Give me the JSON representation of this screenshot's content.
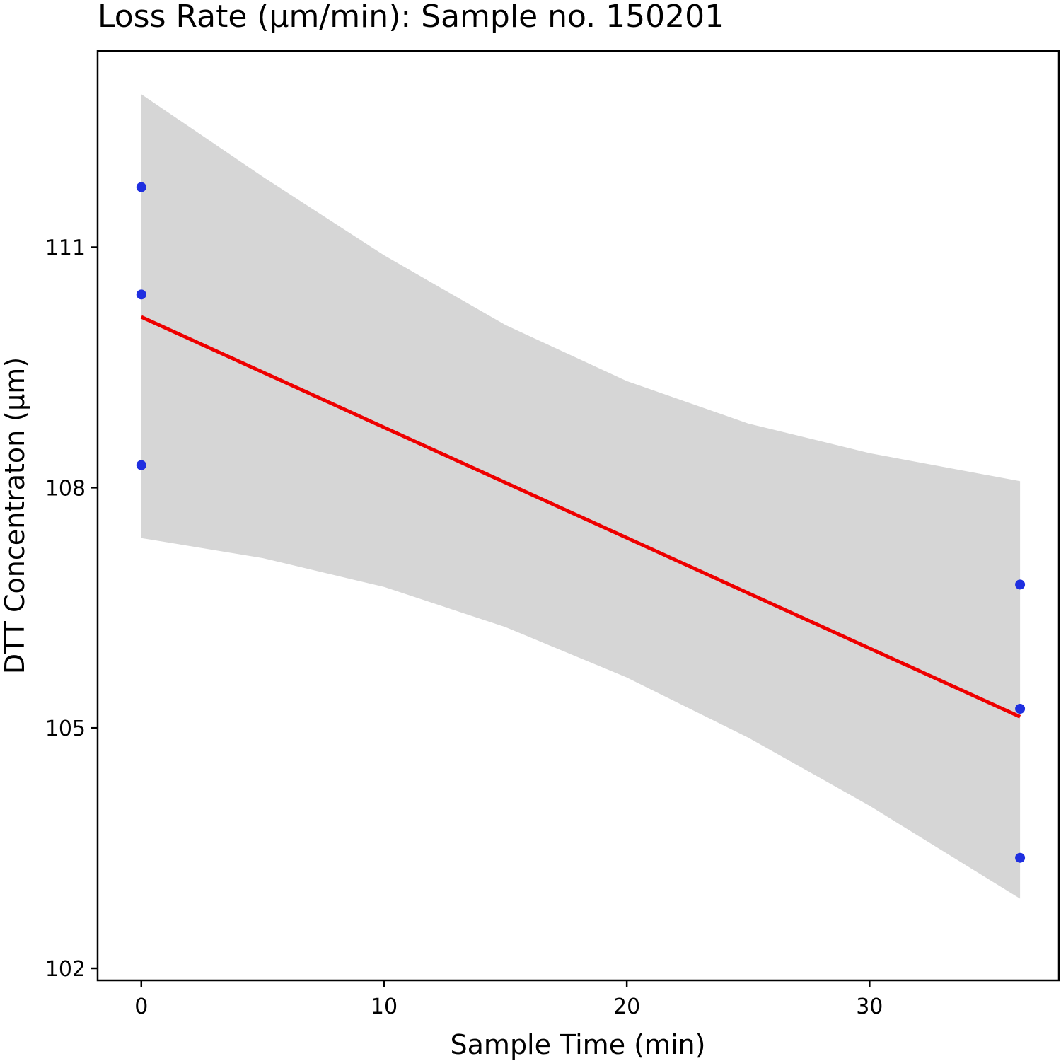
{
  "chart_data": {
    "type": "scatter",
    "title": "Loss Rate (µm/min): Sample no. 150201",
    "xlabel": "Sample Time (min)",
    "ylabel": "DTT Concentraton (µm)",
    "xlim": [
      -1.8,
      37.8
    ],
    "ylim": [
      101.85,
      113.45
    ],
    "x_ticks": [
      0,
      10,
      20,
      30
    ],
    "y_ticks": [
      102,
      105,
      108,
      111
    ],
    "x_tick_labels": [
      "0",
      "10",
      "20",
      "30"
    ],
    "y_tick_labels": [
      "102",
      "105",
      "108",
      "111"
    ],
    "grid": false,
    "legend": "none",
    "points": [
      {
        "x": 0,
        "y": 111.75
      },
      {
        "x": 0,
        "y": 110.41
      },
      {
        "x": 0,
        "y": 108.28
      },
      {
        "x": 36.2,
        "y": 106.79
      },
      {
        "x": 36.2,
        "y": 105.24
      },
      {
        "x": 36.2,
        "y": 103.38
      }
    ],
    "fit_line": {
      "x": [
        0,
        36.2
      ],
      "y": [
        110.13,
        105.14
      ]
    },
    "confidence_band": {
      "x": [
        0,
        5,
        10,
        15,
        20,
        25,
        30,
        36.2
      ],
      "upper": [
        112.91,
        111.88,
        110.9,
        110.03,
        109.33,
        108.8,
        108.43,
        108.08
      ],
      "lower": [
        107.37,
        107.12,
        106.76,
        106.26,
        105.63,
        104.88,
        104.03,
        102.87
      ]
    },
    "colors": {
      "points": "#1f2fe0",
      "line": "#ee0000",
      "band": "#d6d6d6",
      "frame": "#000000"
    }
  }
}
